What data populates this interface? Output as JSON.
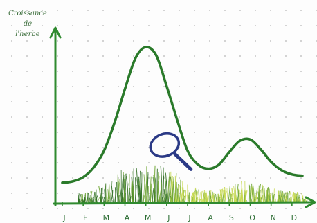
{
  "chart_data": {
    "type": "line",
    "ylabel_lines": [
      "Croissance",
      "de",
      "l'herbe"
    ],
    "xlabel": "",
    "categories": [
      "J",
      "F",
      "M",
      "A",
      "M",
      "J",
      "J",
      "A",
      "S",
      "O",
      "N",
      "D"
    ],
    "series": [
      {
        "x": [
          0,
          0.5,
          1,
          1.5,
          2,
          2.5,
          3,
          3.5,
          4,
          4.5,
          5,
          5.5,
          6,
          6.5,
          7,
          7.5,
          8,
          8.5,
          9,
          9.5,
          10,
          10.5,
          11,
          11.5
        ],
        "values": [
          3,
          4,
          7,
          14,
          26,
          46,
          70,
          92,
          100,
          94,
          72,
          48,
          26,
          16,
          13,
          16,
          25,
          33,
          34,
          27,
          18,
          12,
          9,
          8
        ]
      }
    ],
    "ylim": [
      0,
      100
    ],
    "xlim": [
      0,
      11.8
    ],
    "grid": false,
    "legend": "none",
    "colors": {
      "curve": "#2a7a2a",
      "axes": "#2f8a2f",
      "grass_dark": "#2f6e22",
      "grass_mid": "#6ea634",
      "grass_light": "#c6d84e",
      "magnifier": "#2b3a86"
    },
    "annotations": {
      "magnifier": {
        "x": 4.9,
        "y": 30
      }
    }
  }
}
